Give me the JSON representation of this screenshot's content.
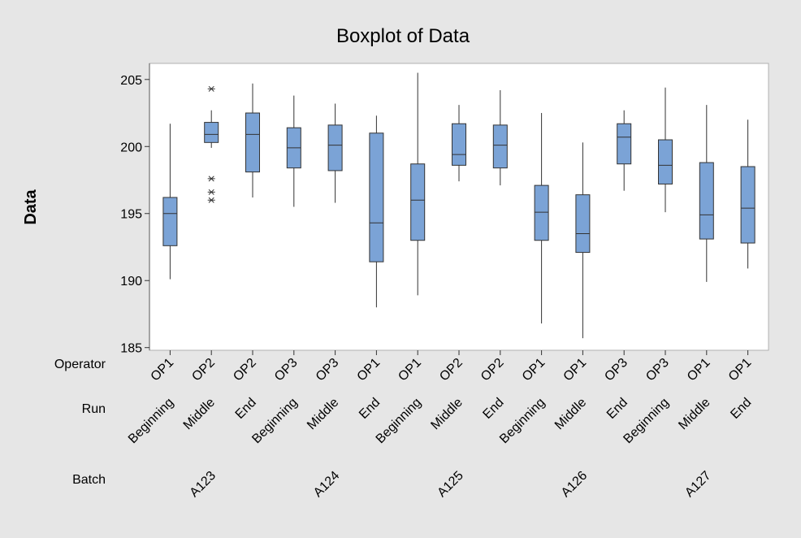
{
  "chart_data": {
    "type": "boxplot",
    "title": "Boxplot of Data",
    "ylabel": "Data",
    "ylim": [
      184.8,
      206.2
    ],
    "yticks": [
      185,
      190,
      195,
      200,
      205
    ],
    "grid": false,
    "legend": "none",
    "box_color": "#7ba3d6",
    "factor_labels": [
      "Operator",
      "Run",
      "Batch"
    ],
    "batches": [
      "A123",
      "A124",
      "A125",
      "A126",
      "A127"
    ],
    "groups": [
      {
        "operator": "OP1",
        "run": "Beginning",
        "batch": "A123",
        "min": 190.1,
        "q1": 192.6,
        "median": 195.0,
        "q3": 196.2,
        "max": 201.7,
        "outliers": []
      },
      {
        "operator": "OP2",
        "run": "Middle",
        "batch": "A123",
        "min": 199.9,
        "q1": 200.3,
        "median": 200.9,
        "q3": 201.8,
        "max": 202.7,
        "outliers": [
          204.3,
          197.6,
          196.6,
          196.0
        ]
      },
      {
        "operator": "OP2",
        "run": "End",
        "batch": "A123",
        "min": 196.2,
        "q1": 198.1,
        "median": 200.9,
        "q3": 202.5,
        "max": 204.7,
        "outliers": []
      },
      {
        "operator": "OP3",
        "run": "Beginning",
        "batch": "A124",
        "min": 195.5,
        "q1": 198.4,
        "median": 199.9,
        "q3": 201.4,
        "max": 203.8,
        "outliers": []
      },
      {
        "operator": "OP3",
        "run": "Middle",
        "batch": "A124",
        "min": 195.8,
        "q1": 198.2,
        "median": 200.1,
        "q3": 201.6,
        "max": 203.2,
        "outliers": []
      },
      {
        "operator": "OP1",
        "run": "End",
        "batch": "A124",
        "min": 188.0,
        "q1": 191.4,
        "median": 194.3,
        "q3": 201.0,
        "max": 202.3,
        "outliers": []
      },
      {
        "operator": "OP1",
        "run": "Beginning",
        "batch": "A125",
        "min": 188.9,
        "q1": 193.0,
        "median": 196.0,
        "q3": 198.7,
        "max": 205.5,
        "outliers": []
      },
      {
        "operator": "OP2",
        "run": "Middle",
        "batch": "A125",
        "min": 197.4,
        "q1": 198.6,
        "median": 199.4,
        "q3": 201.7,
        "max": 203.1,
        "outliers": []
      },
      {
        "operator": "OP2",
        "run": "End",
        "batch": "A125",
        "min": 197.1,
        "q1": 198.4,
        "median": 200.1,
        "q3": 201.6,
        "max": 204.2,
        "outliers": []
      },
      {
        "operator": "OP1",
        "run": "Beginning",
        "batch": "A126",
        "min": 186.8,
        "q1": 193.0,
        "median": 195.1,
        "q3": 197.1,
        "max": 202.5,
        "outliers": []
      },
      {
        "operator": "OP1",
        "run": "Middle",
        "batch": "A126",
        "min": 185.7,
        "q1": 192.1,
        "median": 193.5,
        "q3": 196.4,
        "max": 200.3,
        "outliers": []
      },
      {
        "operator": "OP3",
        "run": "End",
        "batch": "A126",
        "min": 196.7,
        "q1": 198.7,
        "median": 200.7,
        "q3": 201.7,
        "max": 202.7,
        "outliers": []
      },
      {
        "operator": "OP3",
        "run": "Beginning",
        "batch": "A127",
        "min": 195.1,
        "q1": 197.2,
        "median": 198.6,
        "q3": 200.5,
        "max": 204.4,
        "outliers": []
      },
      {
        "operator": "OP1",
        "run": "Middle",
        "batch": "A127",
        "min": 189.9,
        "q1": 193.1,
        "median": 194.9,
        "q3": 198.8,
        "max": 203.1,
        "outliers": []
      },
      {
        "operator": "OP1",
        "run": "End",
        "batch": "A127",
        "min": 190.9,
        "q1": 192.8,
        "median": 195.4,
        "q3": 198.5,
        "max": 202.0,
        "outliers": []
      }
    ]
  }
}
